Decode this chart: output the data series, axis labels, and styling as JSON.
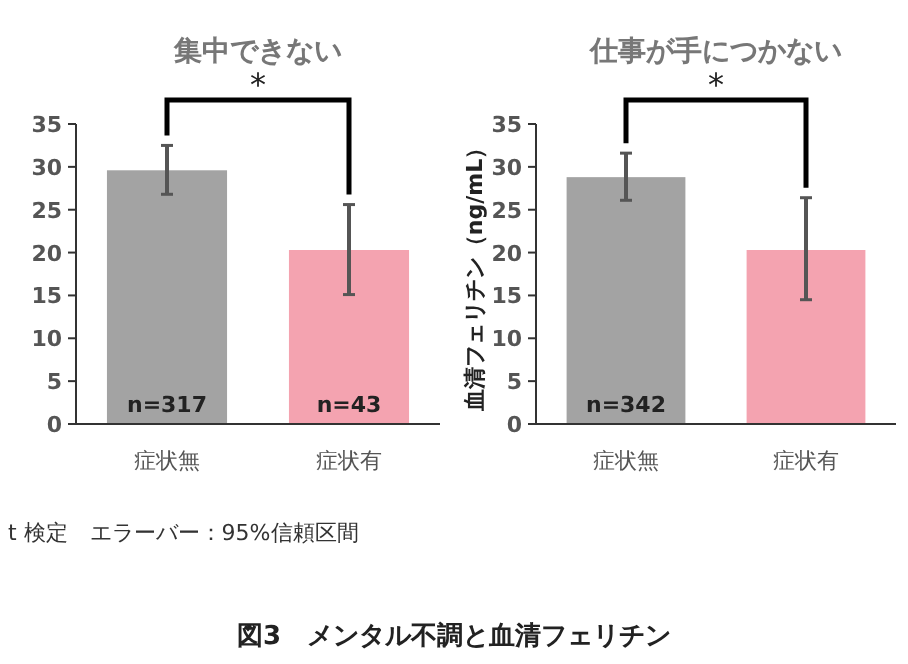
{
  "chart_data": [
    {
      "type": "bar",
      "title": "集中できない",
      "categories": [
        "症状無",
        "症状有"
      ],
      "values": [
        29.6,
        20.3
      ],
      "colors": [
        "#a3a3a3",
        "#f4a3b0"
      ],
      "errors": [
        [
          26.8,
          32.5
        ],
        [
          15.1,
          25.6
        ]
      ],
      "ylim": [
        0,
        35
      ],
      "yticks": [
        0,
        5,
        10,
        15,
        20,
        25,
        30,
        35
      ],
      "annotations": [
        "*",
        "n=317",
        "n=43",
        "t 検定　エラーバー：95%信頼区間",
        "図3　メンタル不調と血清フェリチン"
      ]
    },
    {
      "type": "bar",
      "title": "仕事が手につかない",
      "ylabel": "血清フェリチン（ng/mL）",
      "categories": [
        "症状無",
        "症状有"
      ],
      "values": [
        28.8,
        20.3
      ],
      "colors": [
        "#a3a3a3",
        "#f4a3b0"
      ],
      "errors": [
        [
          26.1,
          31.6
        ],
        [
          14.5,
          26.4
        ]
      ],
      "ylim": [
        0,
        35
      ],
      "yticks": [
        0,
        5,
        10,
        15,
        20,
        25,
        30,
        35
      ],
      "annotations": [
        "*",
        "n=342"
      ]
    }
  ]
}
